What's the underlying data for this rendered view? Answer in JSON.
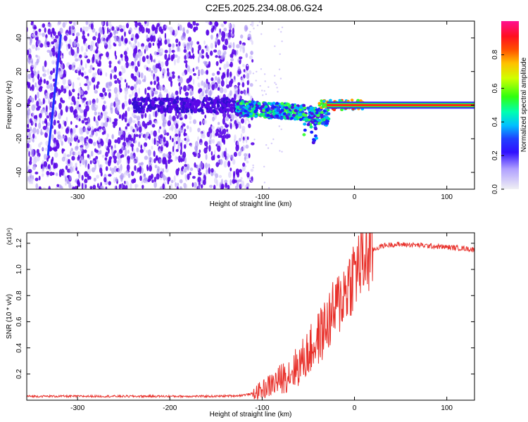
{
  "figure_title": "C2E5.2025.234.08.06.G24",
  "colors": {
    "snr_line": "#e8302a",
    "spectrogram_dot": "#5b08e8",
    "ridge": "#ff2a10",
    "axis": "#000000"
  },
  "chart_data": [
    {
      "type": "heatmap",
      "title": "C2E5.2025.234.08.06.G24",
      "xlabel": "Height of straight line (km)",
      "ylabel": "Frequency (Hz)",
      "xlim": [
        -355,
        130
      ],
      "ylim": [
        -50,
        50
      ],
      "x_ticks": [
        -300,
        -200,
        -100,
        0,
        100
      ],
      "y_ticks": [
        -40,
        -20,
        0,
        20,
        40
      ],
      "noise_region_x": [
        -355,
        -118
      ],
      "ridge": {
        "x_start": -30,
        "x_end": 130,
        "frequency": 0
      },
      "streak": {
        "x": [
          -318,
          -332
        ],
        "frequency": [
          42,
          -30
        ]
      },
      "colorbar": {
        "label": "Normalized spectral amplitude",
        "range": [
          0,
          1
        ],
        "ticks": [
          0.0,
          0.2,
          0.4,
          0.6,
          0.8
        ],
        "tick_labels": [
          "0.0",
          "0.2",
          "0.4",
          "0.6",
          "0.8"
        ]
      }
    },
    {
      "type": "line",
      "xlabel": "Height of straight line (km)",
      "ylabel": "SNR (10 * v/v)",
      "scale_label": "(x10⁴)",
      "xlim": [
        -355,
        130
      ],
      "ylim": [
        0,
        1.28
      ],
      "x_ticks": [
        -300,
        -200,
        -100,
        0,
        100
      ],
      "y_ticks": [
        0.2,
        0.4,
        0.6,
        0.8,
        1.0,
        1.2
      ],
      "y_tick_labels": [
        "0.2",
        "0.4",
        "0.6",
        "0.8",
        "1.0",
        "1.2"
      ],
      "series": [
        {
          "name": "SNR",
          "x": [
            -355,
            -300,
            -250,
            -200,
            -150,
            -125,
            -110,
            -100,
            -90,
            -80,
            -70,
            -60,
            -50,
            -40,
            -30,
            -20,
            -10,
            0,
            10,
            20,
            30,
            40,
            60,
            80,
            100,
            120,
            130
          ],
          "values": [
            0.03,
            0.03,
            0.03,
            0.03,
            0.03,
            0.035,
            0.05,
            0.08,
            0.12,
            0.16,
            0.21,
            0.27,
            0.36,
            0.46,
            0.58,
            0.7,
            0.84,
            0.98,
            1.08,
            1.15,
            1.18,
            1.19,
            1.19,
            1.18,
            1.17,
            1.16,
            1.15
          ]
        }
      ]
    }
  ]
}
